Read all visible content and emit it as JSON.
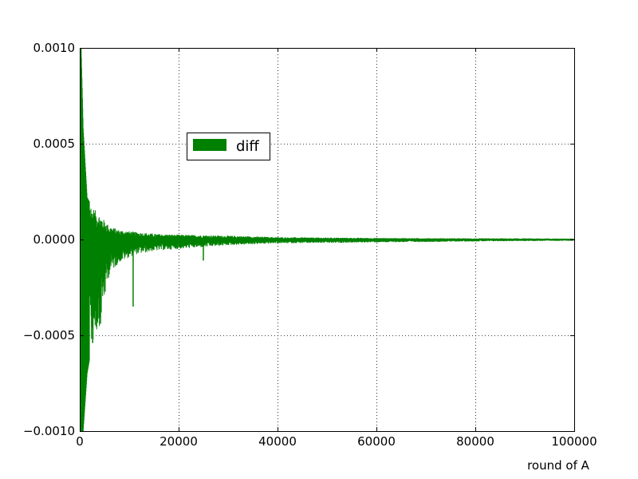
{
  "chart_data": {
    "type": "line",
    "title": "",
    "xlabel": "round of A",
    "ylabel": "",
    "xlim": [
      0,
      100000
    ],
    "ylim": [
      -0.001,
      0.001
    ],
    "xticks": [
      0,
      20000,
      40000,
      60000,
      80000,
      100000
    ],
    "xtick_labels": [
      "0",
      "20000",
      "40000",
      "60000",
      "80000",
      "100000"
    ],
    "yticks": [
      -0.001,
      -0.0005,
      0.0,
      0.0005,
      0.001
    ],
    "ytick_labels": [
      "−0.0010",
      "−0.0005",
      "0.0000",
      "0.0005",
      "0.0010"
    ],
    "grid": true,
    "grid_style": "dotted",
    "legend_position": "upper-left-center",
    "series": [
      {
        "name": "diff",
        "color": "#008000",
        "envelope_x": [
          0,
          300,
          700,
          1500,
          2500,
          4000,
          6000,
          8000,
          11000,
          15000,
          20000,
          30000,
          40000,
          50000,
          60000,
          70000,
          80000,
          90000,
          100000
        ],
        "envelope_upper": [
          0.001,
          0.001,
          0.00058,
          0.00022,
          0.00017,
          0.00013,
          7e-05,
          5e-05,
          4e-05,
          3e-05,
          2.5e-05,
          2e-05,
          1.2e-05,
          1e-05,
          8e-06,
          7e-06,
          6e-06,
          6e-06,
          5e-06
        ],
        "envelope_lower": [
          -0.001,
          -0.001,
          -0.001,
          -0.0007,
          -0.00055,
          -0.00045,
          -0.00018,
          -0.00012,
          -8e-05,
          -6e-05,
          -5e-05,
          -3e-05,
          -2e-05,
          -1.8e-05,
          -1.5e-05,
          -1.3e-05,
          -1e-05,
          -8e-06,
          -7e-06
        ],
        "spikes": [
          {
            "x": 10800,
            "y": -0.00035
          },
          {
            "x": 25000,
            "y": -0.00011
          },
          {
            "x": 4200,
            "y": -0.00044
          },
          {
            "x": 2600,
            "y": -0.00054
          },
          {
            "x": 1800,
            "y": -0.00053
          }
        ]
      }
    ]
  }
}
